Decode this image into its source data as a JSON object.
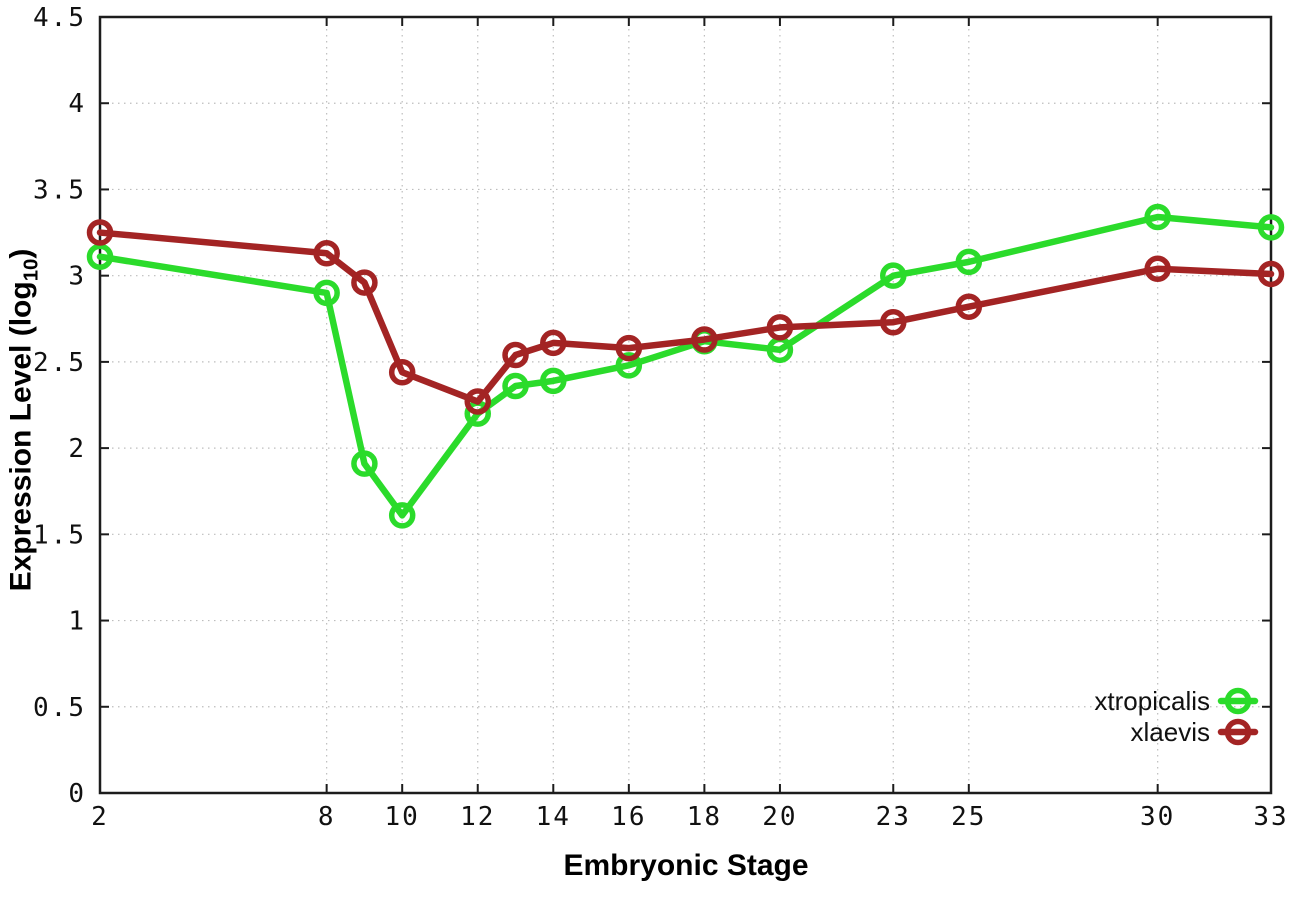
{
  "chart_data": {
    "type": "line",
    "title": "",
    "xlabel": "Embryonic Stage",
    "ylabel": "Expression Level (log10)",
    "ylabel_parts": {
      "main": "Expression Level (log",
      "sub": "10",
      "end": ")"
    },
    "x": [
      2,
      8,
      9,
      10,
      12,
      13,
      14,
      16,
      18,
      20,
      23,
      25,
      30,
      33
    ],
    "series": [
      {
        "name": "xtropicalis",
        "color": "#2bdb2b",
        "values": [
          3.11,
          2.9,
          1.91,
          1.61,
          2.2,
          2.36,
          2.39,
          2.48,
          2.62,
          2.57,
          3.0,
          3.08,
          3.34,
          3.28
        ]
      },
      {
        "name": "xlaevis",
        "color": "#a32424",
        "values": [
          3.25,
          3.13,
          2.96,
          2.44,
          2.27,
          2.54,
          2.61,
          2.58,
          2.63,
          2.7,
          2.73,
          2.82,
          3.04,
          3.01
        ]
      }
    ],
    "xlim": [
      2,
      33
    ],
    "ylim": [
      0,
      4.5
    ],
    "x_ticks": [
      2,
      8,
      10,
      12,
      14,
      16,
      18,
      20,
      23,
      25,
      30,
      33
    ],
    "x_tick_labels": [
      "2",
      "8",
      "10",
      "12",
      "14",
      "16",
      "18",
      "20",
      "23",
      "25",
      "30",
      "33"
    ],
    "y_ticks": [
      0,
      0.5,
      1,
      1.5,
      2,
      2.5,
      3,
      3.5,
      4,
      4.5
    ],
    "y_tick_labels": [
      "0",
      "0.5",
      "1",
      "1.5",
      "2",
      "2.5",
      "3",
      "3.5",
      "4",
      "4.5"
    ],
    "grid": true,
    "grid_style": "dotted",
    "legend_position": "bottom-right",
    "marker": "open-circle",
    "grid_color": "#bdbdbd",
    "axis_color": "#1c1c1c",
    "text_color": "#111111"
  }
}
